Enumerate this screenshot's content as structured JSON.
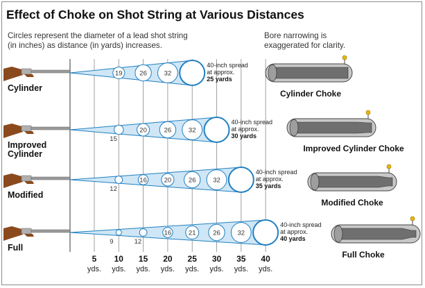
{
  "title": "Effect of Choke on Shot String at Various Distances",
  "intro": {
    "left_line1": "Circles represent the diameter of a lead shot string",
    "left_line2": "(in inches) as distance (in yards) increases.",
    "right_line1": "Bore narrowing is",
    "right_line2": "exaggerated for clarity."
  },
  "colors": {
    "circle": "#1f7fc0",
    "cone": "#cfe6f6",
    "guide_line": "#888888",
    "barrel": "#9a9a9a",
    "stock": "#8a4a1e",
    "bead": "#f0b800",
    "title": "#111111"
  },
  "rows": [
    {
      "label_lines": [
        "Cylinder"
      ],
      "diameters": [
        19,
        26,
        32
      ],
      "start_yards": 10,
      "spread": {
        "line1": "40-inch spread",
        "line2": "at approx.",
        "line3": "25 yards"
      },
      "choke_label": "Cylinder Choke",
      "constriction": 0.0
    },
    {
      "label_lines": [
        "Improved",
        "Cylinder"
      ],
      "diameters": [
        15,
        20,
        26,
        32
      ],
      "start_yards": 10,
      "spread": {
        "line1": "40-inch spread",
        "line2": "at approx.",
        "line3": "30 yards"
      },
      "choke_label": "Improved Cylinder Choke",
      "constriction": 0.25
    },
    {
      "label_lines": [
        "Modified"
      ],
      "diameters": [
        12,
        16,
        20,
        26,
        32
      ],
      "start_yards": 10,
      "spread": {
        "line1": "40-inch spread",
        "line2": "at approx.",
        "line3": "35 yards"
      },
      "choke_label": "Modified Choke",
      "constriction": 0.5
    },
    {
      "label_lines": [
        "Full"
      ],
      "diameters": [
        9,
        12,
        16,
        21,
        26,
        32
      ],
      "start_yards": 10,
      "spread": {
        "line1": "40-inch spread",
        "line2": "at approx.",
        "line3": "40 yards"
      },
      "choke_label": "Full Choke",
      "constriction": 0.75
    }
  ],
  "axis": {
    "yards": [
      5,
      10,
      15,
      20,
      25,
      30,
      35,
      40
    ],
    "unit": "yds."
  }
}
